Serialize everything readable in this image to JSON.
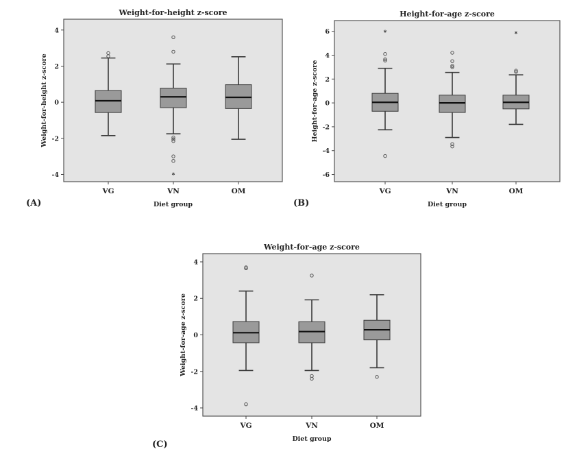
{
  "chart_data": [
    {
      "type": "box",
      "panel_label": "(A)",
      "title": "Weight-for-height z-score",
      "xlabel": "Diet group",
      "ylabel": "Weight-for-height z-score",
      "categories": [
        "VG",
        "VN",
        "OM"
      ],
      "yticks": [
        4,
        2,
        0,
        -2,
        -4
      ],
      "ylim": [
        -4.4,
        4.6
      ],
      "boxes": [
        {
          "whisker_high": 2.45,
          "q3": 0.65,
          "median": 0.08,
          "q1": -0.57,
          "whisker_low": -1.85,
          "outliers": [
            2.72,
            2.55
          ],
          "extremes": []
        },
        {
          "whisker_high": 2.12,
          "q3": 0.78,
          "median": 0.3,
          "q1": -0.3,
          "whisker_low": -1.75,
          "outliers": [
            3.6,
            2.8,
            -1.95,
            -2.05,
            -2.15,
            -3.0,
            -3.25
          ],
          "extremes": [
            -4.0
          ]
        },
        {
          "whisker_high": 2.52,
          "q3": 0.97,
          "median": 0.27,
          "q1": -0.35,
          "whisker_low": -2.05,
          "outliers": [],
          "extremes": []
        }
      ]
    },
    {
      "type": "box",
      "panel_label": "(B)",
      "title": "Height-for-age z-score",
      "xlabel": "Diet group",
      "ylabel": "Height-for-age z-score",
      "categories": [
        "VG",
        "VN",
        "OM"
      ],
      "yticks": [
        6,
        4,
        2,
        0,
        -2,
        -4,
        -6
      ],
      "ylim": [
        -6.6,
        6.9
      ],
      "boxes": [
        {
          "whisker_high": 2.9,
          "q3": 0.8,
          "median": 0.05,
          "q1": -0.7,
          "whisker_low": -2.25,
          "outliers": [
            4.1,
            3.65,
            3.55,
            -4.45
          ],
          "extremes": [
            5.95
          ]
        },
        {
          "whisker_high": 2.55,
          "q3": 0.65,
          "median": 0.0,
          "q1": -0.8,
          "whisker_low": -2.9,
          "outliers": [
            4.2,
            3.5,
            3.1,
            3.0,
            -3.45,
            -3.65
          ],
          "extremes": []
        },
        {
          "whisker_high": 2.35,
          "q3": 0.65,
          "median": 0.05,
          "q1": -0.5,
          "whisker_low": -1.8,
          "outliers": [
            2.7,
            2.6
          ],
          "extremes": [
            5.85
          ]
        }
      ]
    },
    {
      "type": "box",
      "panel_label": "(C)",
      "title": "Weight-for-age z-score",
      "xlabel": "Diet group",
      "ylabel": "Weight-for-age z-score",
      "categories": [
        "VG",
        "VN",
        "OM"
      ],
      "yticks": [
        4,
        2,
        0,
        -2,
        -4
      ],
      "ylim": [
        -4.45,
        4.45
      ],
      "boxes": [
        {
          "whisker_high": 2.4,
          "q3": 0.73,
          "median": 0.12,
          "q1": -0.43,
          "whisker_low": -1.95,
          "outliers": [
            3.7,
            3.65,
            -3.8
          ],
          "extremes": []
        },
        {
          "whisker_high": 1.92,
          "q3": 0.72,
          "median": 0.18,
          "q1": -0.43,
          "whisker_low": -1.95,
          "outliers": [
            3.25,
            -2.25,
            -2.4
          ],
          "extremes": []
        },
        {
          "whisker_high": 2.2,
          "q3": 0.8,
          "median": 0.28,
          "q1": -0.27,
          "whisker_low": -1.8,
          "outliers": [
            -2.3
          ],
          "extremes": []
        }
      ]
    }
  ],
  "colors": {
    "plot_bg": "#e4e4e4",
    "box_fill": "#9a9a9a",
    "line": "#3a3a3a"
  }
}
